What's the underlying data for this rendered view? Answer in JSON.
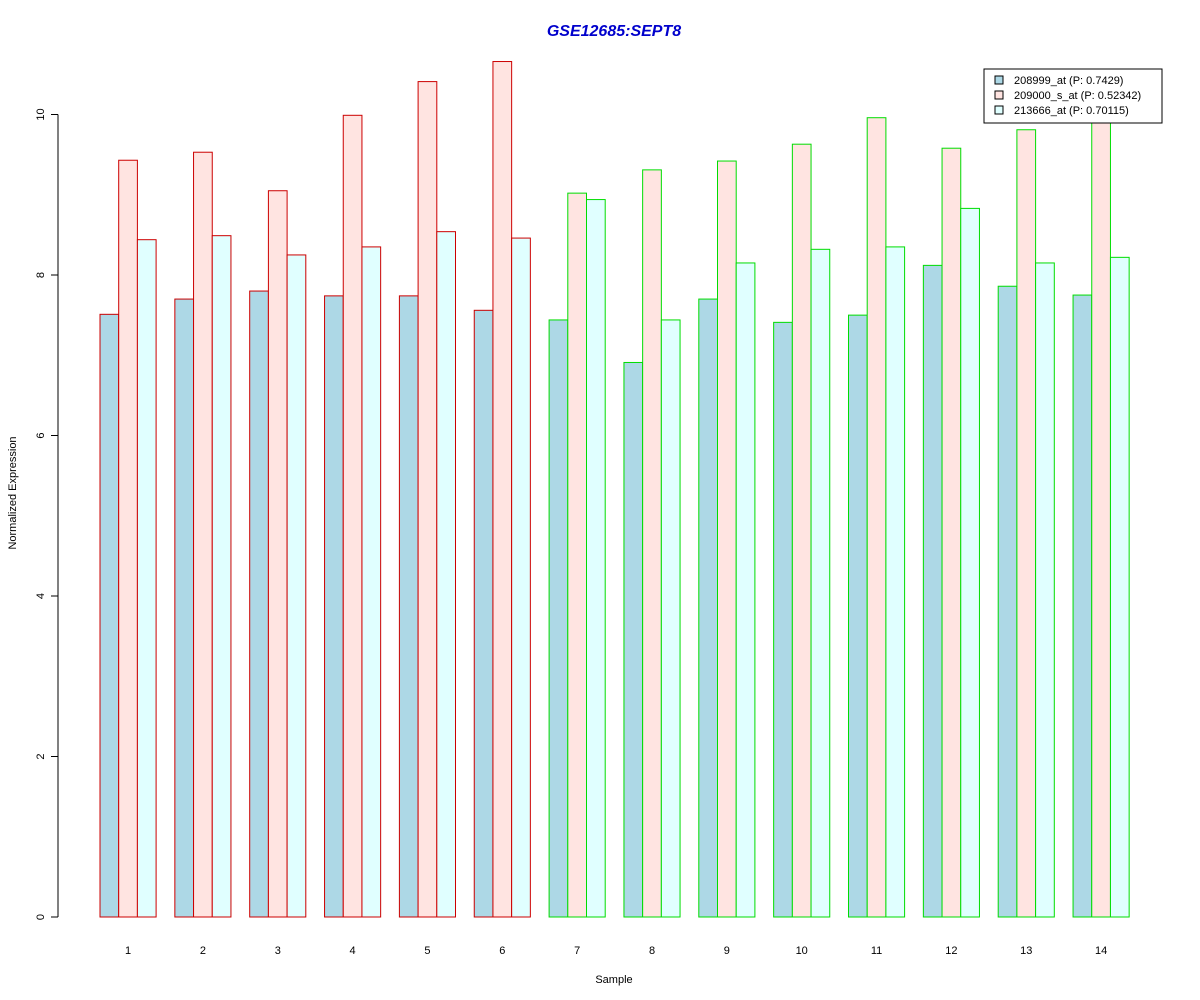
{
  "chart_data": {
    "type": "bar",
    "title": "GSE12685:SEPT8",
    "xlabel": "Sample",
    "ylabel": "Normalized Expression",
    "ylim": [
      0,
      10.7
    ],
    "yticks": [
      0,
      2,
      4,
      6,
      8,
      10
    ],
    "categories": [
      "1",
      "2",
      "3",
      "4",
      "5",
      "6",
      "7",
      "8",
      "9",
      "10",
      "11",
      "12",
      "13",
      "14"
    ],
    "series": [
      {
        "name": "208999_at (P: 0.7429)",
        "fill": "#add8e6",
        "values": [
          7.51,
          7.7,
          7.8,
          7.74,
          7.74,
          7.56,
          7.44,
          6.91,
          7.7,
          7.41,
          7.5,
          8.12,
          7.86,
          7.75
        ]
      },
      {
        "name": "209000_s_at (P: 0.52342)",
        "fill": "#ffe4e1",
        "values": [
          9.43,
          9.53,
          9.05,
          9.99,
          10.41,
          10.66,
          9.02,
          9.31,
          9.42,
          9.63,
          9.96,
          9.58,
          9.81,
          9.9
        ]
      },
      {
        "name": "213666_at (P: 0.70115)",
        "fill": "#e0ffff",
        "values": [
          8.44,
          8.49,
          8.25,
          8.35,
          8.54,
          8.46,
          8.94,
          7.44,
          8.15,
          8.32,
          8.35,
          8.83,
          8.15,
          8.22
        ]
      }
    ],
    "group_borders": [
      "#cc0000",
      "#cc0000",
      "#cc0000",
      "#cc0000",
      "#cc0000",
      "#cc0000",
      "#00dd00",
      "#00dd00",
      "#00dd00",
      "#00dd00",
      "#00dd00",
      "#00dd00",
      "#00dd00",
      "#00dd00"
    ],
    "title_color": "#0000cc",
    "legend_position": "top-right"
  }
}
